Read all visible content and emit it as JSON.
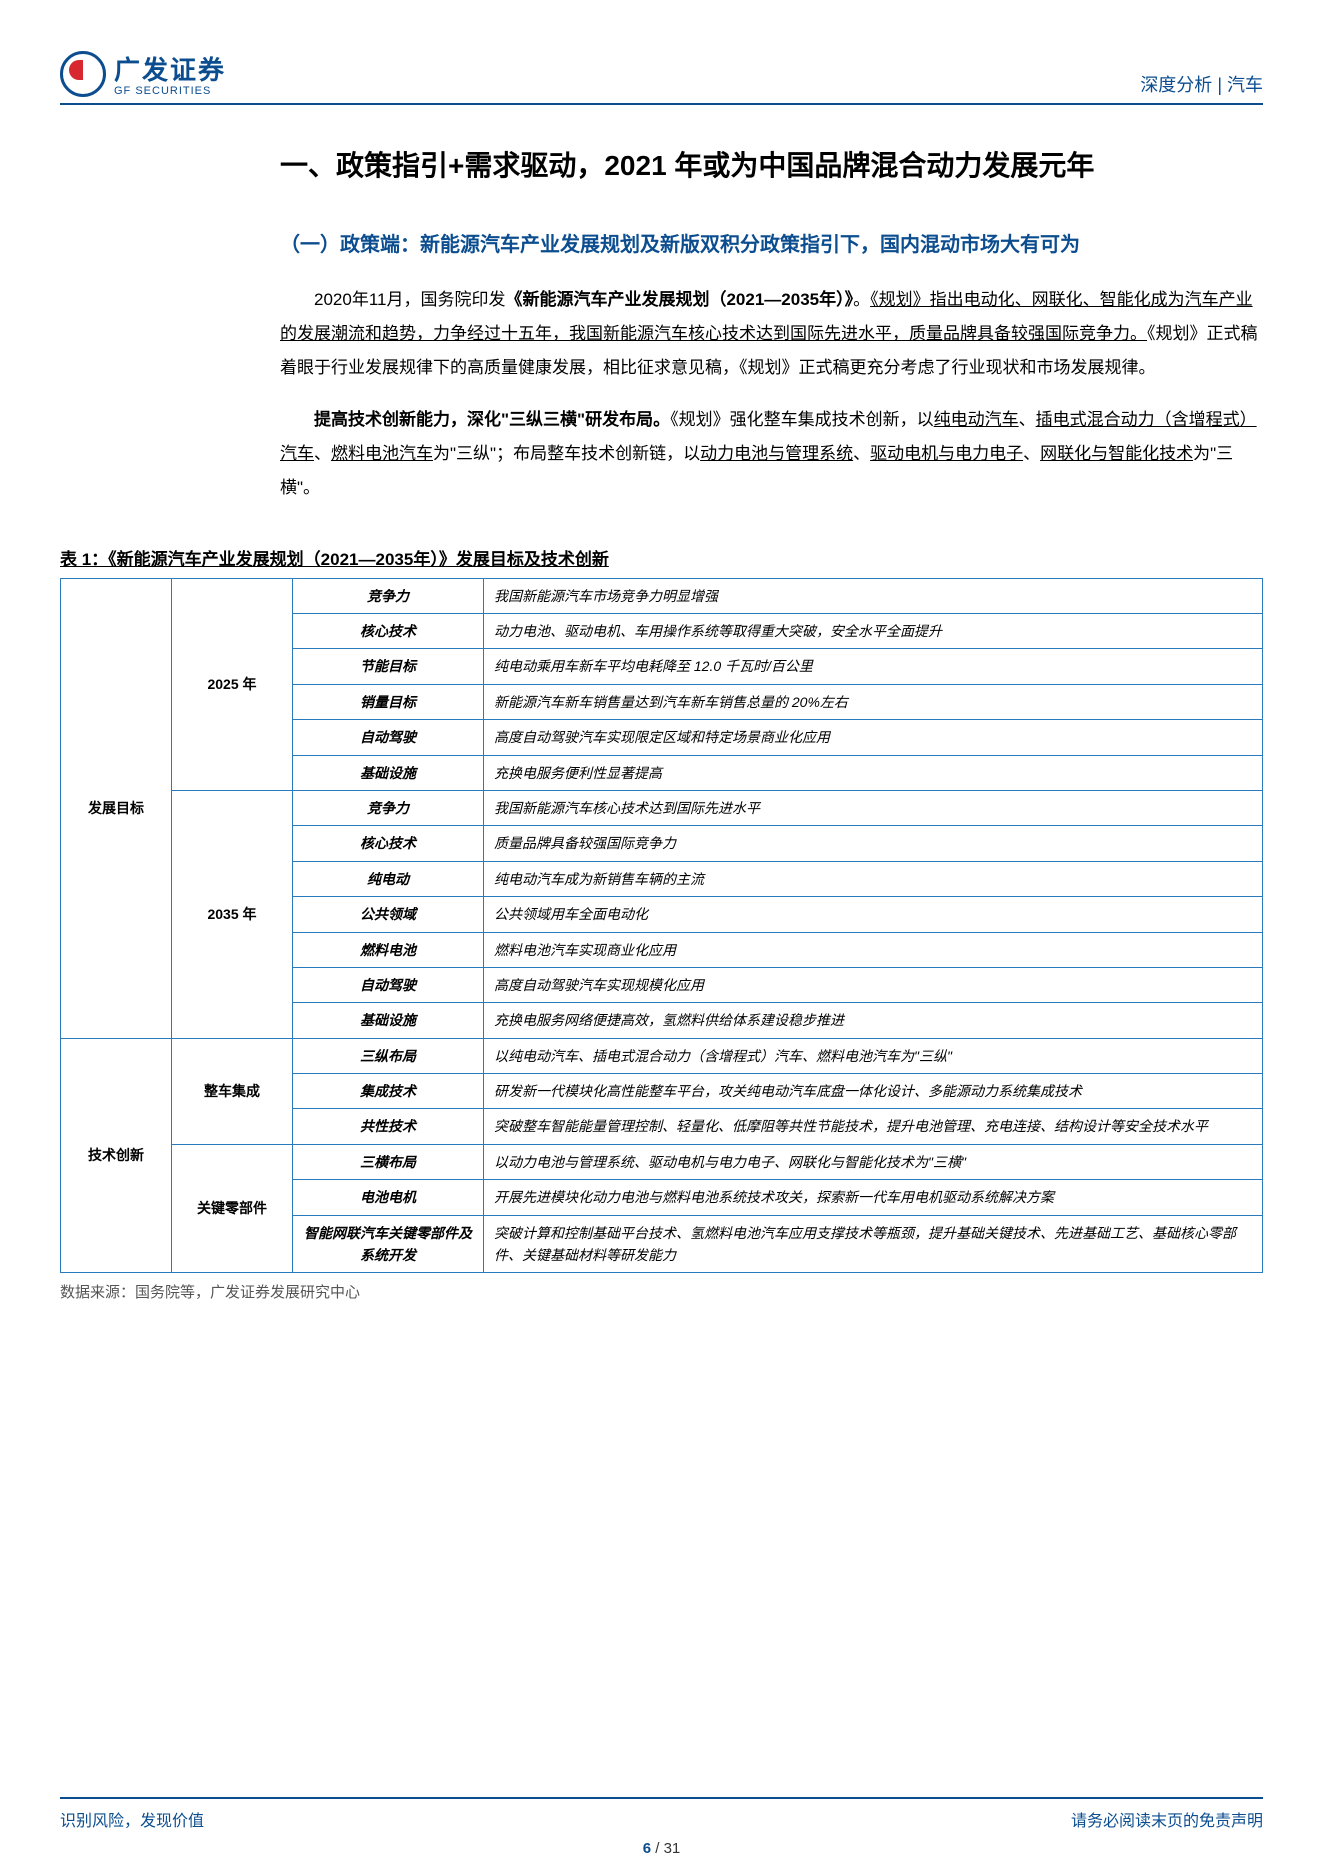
{
  "header": {
    "logo_cn": "广发证券",
    "logo_en": "GF SECURITIES",
    "right": "深度分析 | 汽车"
  },
  "section": {
    "h1": "一、政策指引+需求驱动，2021 年或为中国品牌混合动力发展元年",
    "h2": "（一）政策端：新能源汽车产业发展规划及新版双积分政策指引下，国内混动市场大有可为",
    "p1_lead": "2020年11月，国务院印发",
    "p1_bold": "《新能源汽车产业发展规划（2021—2035年）》",
    "p1_after": "。",
    "p1_u": "《规划》指出电动化、网联化、智能化成为汽车产业的发展潮流和趋势，力争经过十五年，我国新能源汽车核心技术达到国际先进水平，质量品牌具备较强国际竞争力。",
    "p1_rest": "《规划》正式稿着眼于行业发展规律下的高质量健康发展，相比征求意见稿，《规划》正式稿更充分考虑了行业现状和市场发展规律。",
    "p2_bold": "提高技术创新能力，深化\"三纵三横\"研发布局。",
    "p2_a": "《规划》强化整车集成技术创新，以",
    "p2_u1": "纯电动汽车",
    "p2_s1": "、",
    "p2_u2": "插电式混合动力（含增程式）汽车",
    "p2_s2": "、",
    "p2_u3": "燃料电池汽车",
    "p2_b": "为\"三纵\"；布局整车技术创新链，以",
    "p2_u4": "动力电池与管理系统",
    "p2_s3": "、",
    "p2_u5": "驱动电机与电力电子",
    "p2_s4": "、",
    "p2_u6": "网联化与智能化技术",
    "p2_c": "为\"三横\"。"
  },
  "table": {
    "title": "表 1：《新能源汽车产业发展规划（2021—2035年）》发展目标及技术创新",
    "groups": [
      {
        "lvl1": "发展目标",
        "subs": [
          {
            "lvl2": "2025 年",
            "rows": [
              {
                "k": "竞争力",
                "v": "我国新能源汽车市场竞争力明显增强"
              },
              {
                "k": "核心技术",
                "v": "动力电池、驱动电机、车用操作系统等取得重大突破，安全水平全面提升"
              },
              {
                "k": "节能目标",
                "v": "纯电动乘用车新车平均电耗降至 12.0 千瓦时/百公里"
              },
              {
                "k": "销量目标",
                "v": "新能源汽车新车销售量达到汽车新车销售总量的 20%左右"
              },
              {
                "k": "自动驾驶",
                "v": "高度自动驾驶汽车实现限定区域和特定场景商业化应用"
              },
              {
                "k": "基础设施",
                "v": "充换电服务便利性显著提高"
              }
            ]
          },
          {
            "lvl2": "2035 年",
            "rows": [
              {
                "k": "竞争力",
                "v": "我国新能源汽车核心技术达到国际先进水平"
              },
              {
                "k": "核心技术",
                "v": "质量品牌具备较强国际竞争力"
              },
              {
                "k": "纯电动",
                "v": "纯电动汽车成为新销售车辆的主流"
              },
              {
                "k": "公共领域",
                "v": "公共领域用车全面电动化"
              },
              {
                "k": "燃料电池",
                "v": "燃料电池汽车实现商业化应用"
              },
              {
                "k": "自动驾驶",
                "v": "高度自动驾驶汽车实现规模化应用"
              },
              {
                "k": "基础设施",
                "v": "充换电服务网络便捷高效，氢燃料供给体系建设稳步推进"
              }
            ]
          }
        ]
      },
      {
        "lvl1": "技术创新",
        "subs": [
          {
            "lvl2": "整车集成",
            "rows": [
              {
                "k": "三纵布局",
                "v": "以纯电动汽车、插电式混合动力（含增程式）汽车、燃料电池汽车为\"三纵\""
              },
              {
                "k": "集成技术",
                "v": "研发新一代模块化高性能整车平台，攻关纯电动汽车底盘一体化设计、多能源动力系统集成技术"
              },
              {
                "k": "共性技术",
                "v": "突破整车智能能量管理控制、轻量化、低摩阻等共性节能技术，提升电池管理、充电连接、结构设计等安全技术水平"
              }
            ]
          },
          {
            "lvl2": "关键零部件",
            "rows": [
              {
                "k": "三横布局",
                "v": "以动力电池与管理系统、驱动电机与电力电子、网联化与智能化技术为\"三横\""
              },
              {
                "k": "电池电机",
                "v": "开展先进模块化动力电池与燃料电池系统技术攻关，探索新一代车用电机驱动系统解决方案"
              },
              {
                "k": "智能网联汽车关键零部件及系统开发",
                "v": "突破计算和控制基础平台技术、氢燃料电池汽车应用支撑技术等瓶颈，提升基础关键技术、先进基础工艺、基础核心零部件、关键基础材料等研发能力"
              }
            ]
          }
        ]
      }
    ],
    "source": "数据来源：国务院等，广发证券发展研究中心"
  },
  "footer": {
    "left": "识别风险，发现价值",
    "right": "请务必阅读末页的免责声明",
    "page": "6",
    "total": "/ 31"
  }
}
